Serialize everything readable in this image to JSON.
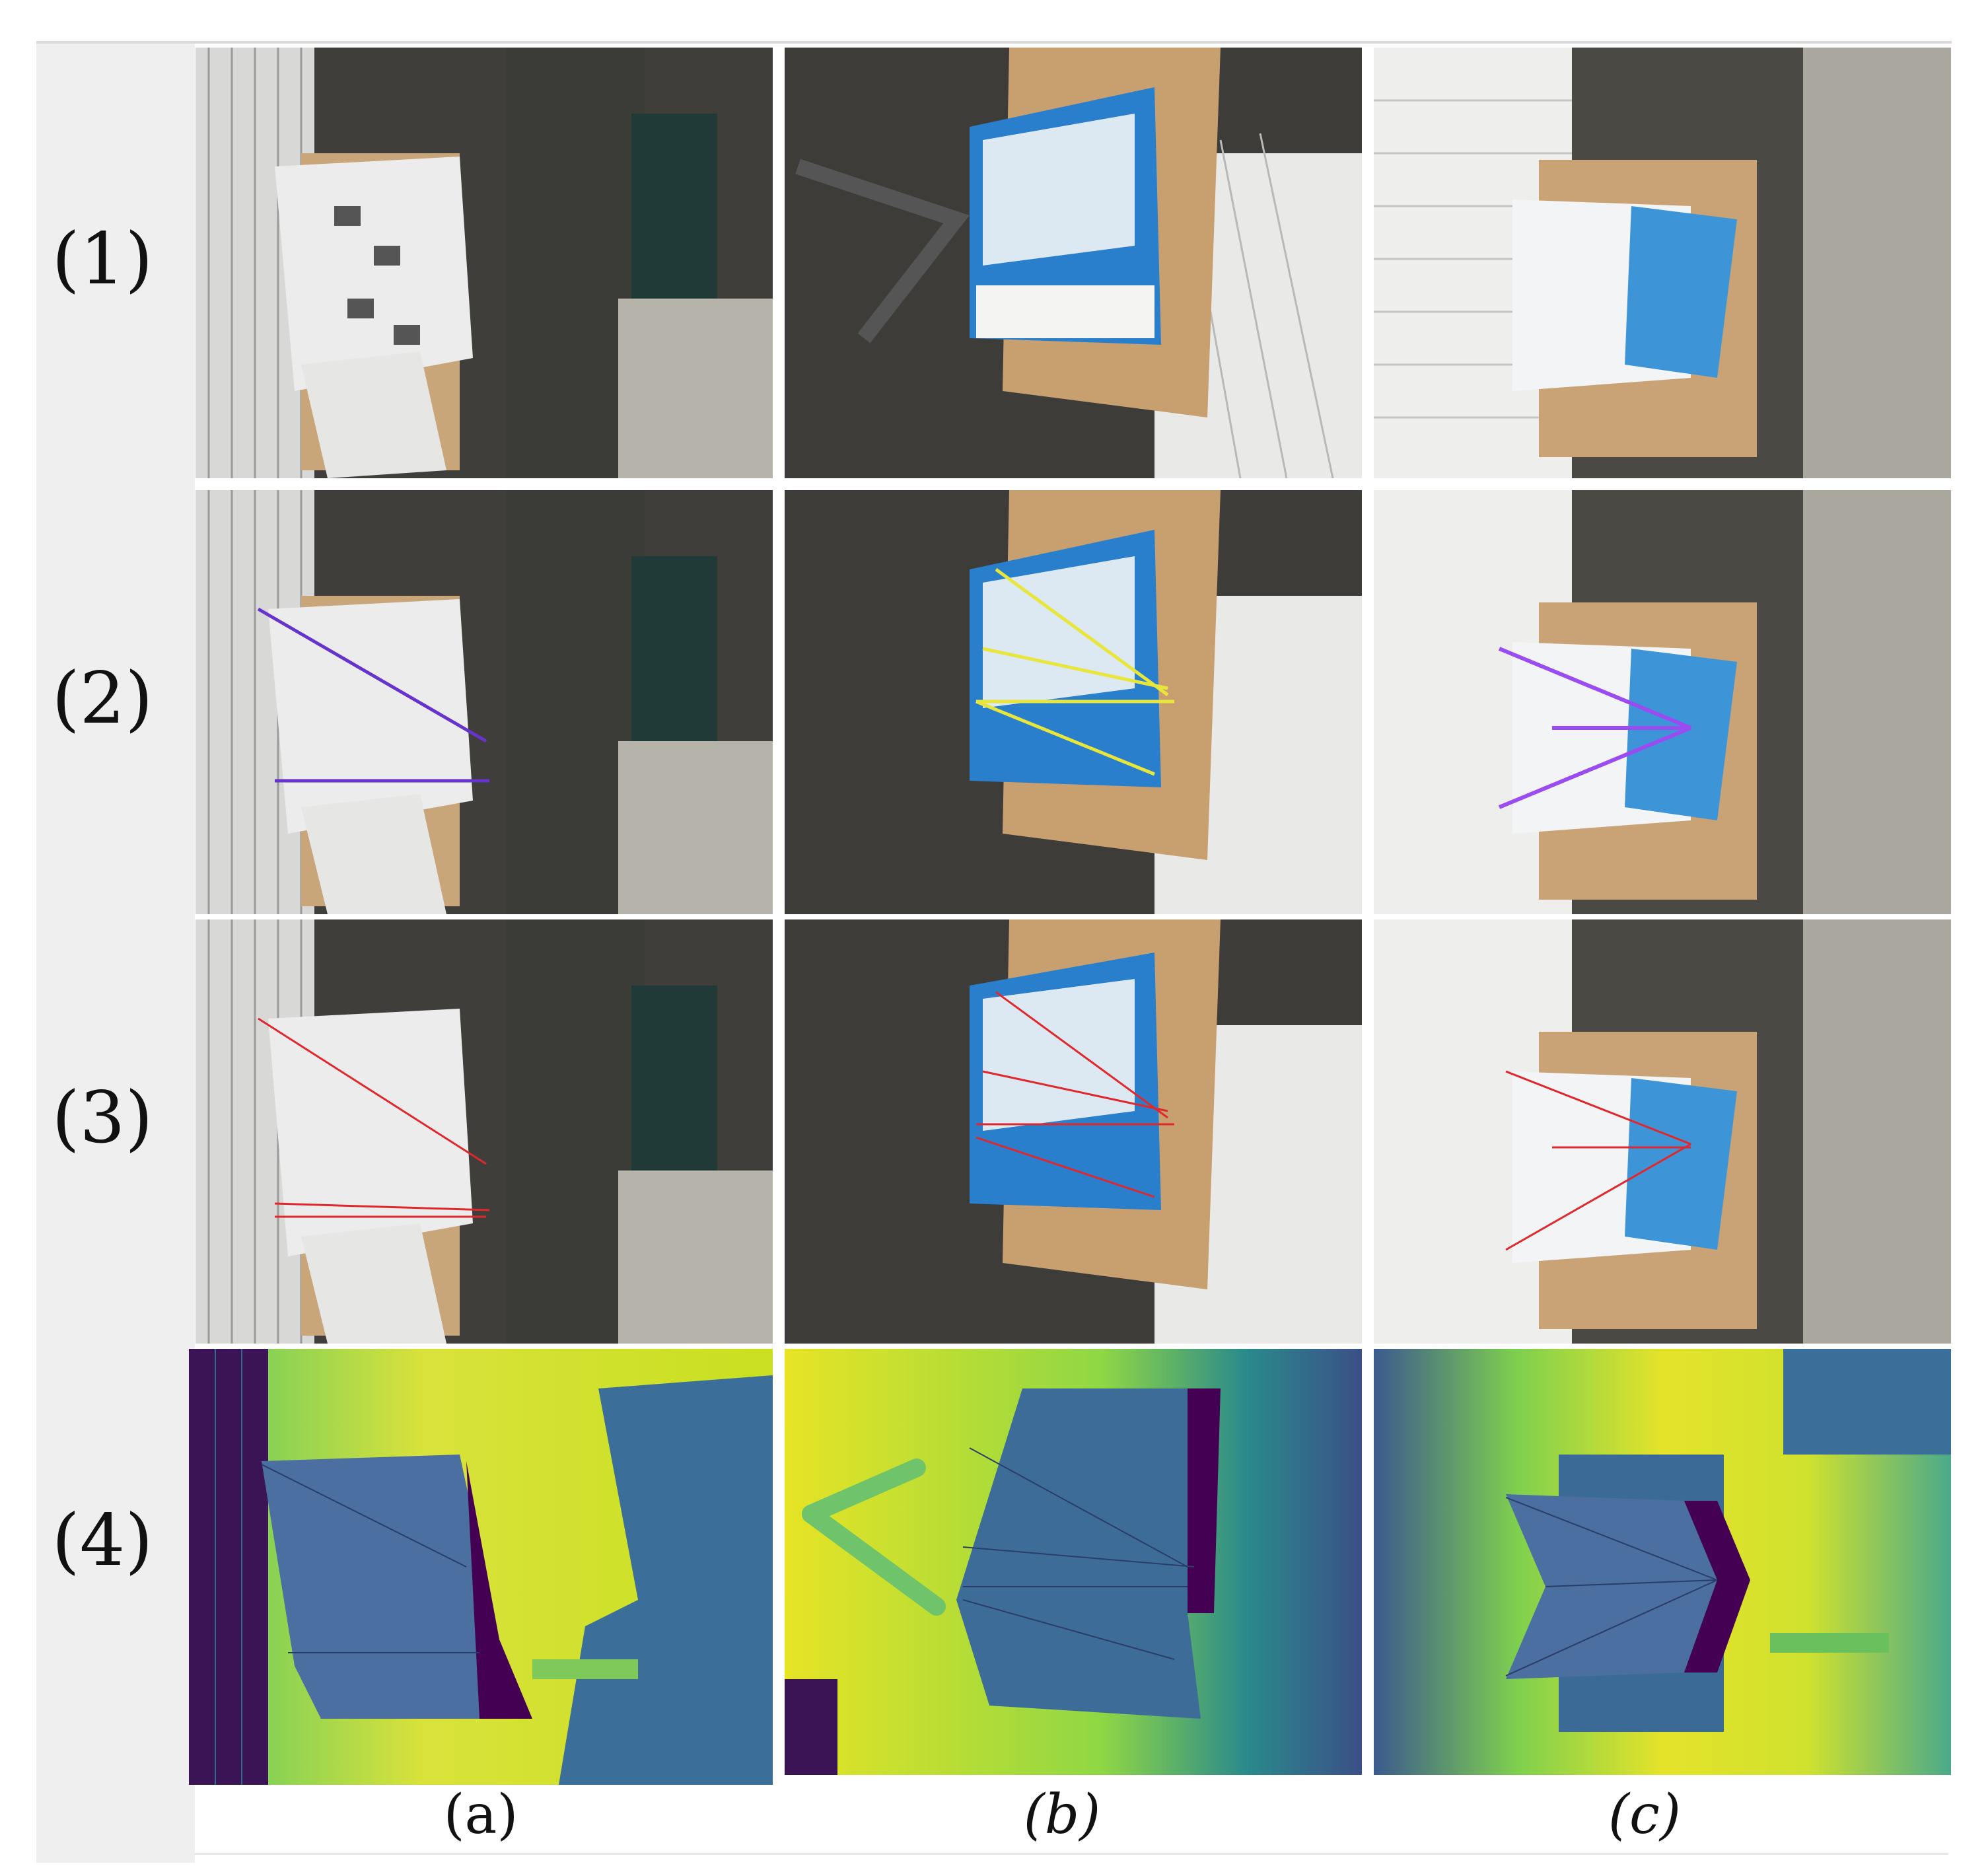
{
  "figure": {
    "row_labels": [
      "(1)",
      "(2)",
      "(3)",
      "(4)"
    ],
    "column_labels": [
      "(a)",
      "(b)",
      "(c)"
    ],
    "rows": [
      {
        "content": "photo"
      },
      {
        "content": "photo with annotated fold lines",
        "line_colors": {
          "a": "#6633cc",
          "b": "#e8e63a",
          "c": "#9a4cf0"
        }
      },
      {
        "content": "photo with predicted fold lines",
        "line_color": "#e0282c"
      },
      {
        "content": "depth map",
        "colormap": [
          "#440154",
          "#3b528b",
          "#21918c",
          "#5ec962",
          "#fde725"
        ]
      }
    ]
  }
}
